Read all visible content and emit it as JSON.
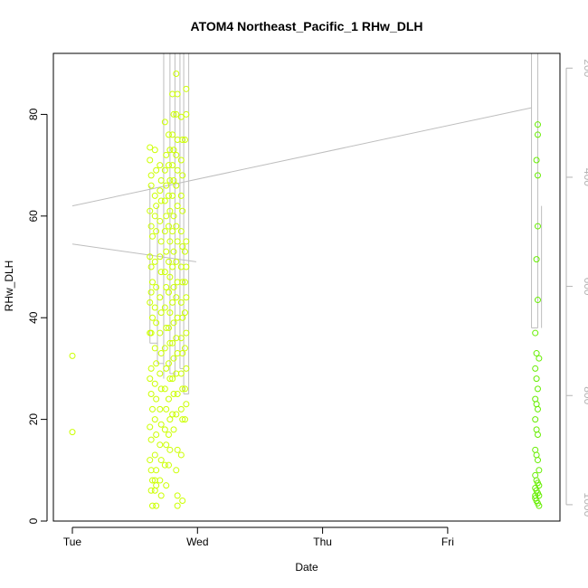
{
  "chart_data": {
    "type": "scatter",
    "title": "ATOM4 Northeast_Pacific_1 RHw_DLH",
    "xlabel": "Date",
    "ylabel": "RHw_DLH",
    "x_ticks": [
      "Tue",
      "Wed",
      "Thu",
      "Fri"
    ],
    "x_tick_positions_days": [
      0,
      1,
      2,
      3
    ],
    "xlim_days": [
      -0.2,
      3.9
    ],
    "ylim": [
      0,
      92
    ],
    "y_ticks": [
      0,
      20,
      40,
      60,
      80
    ],
    "right_axis": {
      "label": "",
      "ticks": [
        200,
        400,
        600,
        800,
        1000
      ],
      "range": [
        1030,
        173
      ],
      "color": "#b3b3b3"
    },
    "colors": {
      "early": "#ccff00",
      "late": "#66ee00",
      "line": "#bebebe"
    },
    "series": [
      {
        "points": [
          [
            0.0,
            32.5
          ],
          [
            0.0,
            17.5
          ],
          [
            0.62,
            73.5
          ],
          [
            0.62,
            71
          ],
          [
            0.63,
            68
          ],
          [
            0.63,
            66
          ],
          [
            0.62,
            61
          ],
          [
            0.63,
            58
          ],
          [
            0.64,
            56
          ],
          [
            0.62,
            52
          ],
          [
            0.63,
            50
          ],
          [
            0.64,
            47
          ],
          [
            0.63,
            45
          ],
          [
            0.62,
            43
          ],
          [
            0.64,
            40
          ],
          [
            0.63,
            37
          ],
          [
            0.62,
            37
          ],
          [
            0.63,
            30
          ],
          [
            0.62,
            28
          ],
          [
            0.63,
            25
          ],
          [
            0.64,
            22
          ],
          [
            0.62,
            18.5
          ],
          [
            0.63,
            16
          ],
          [
            0.62,
            12
          ],
          [
            0.63,
            10
          ],
          [
            0.64,
            8
          ],
          [
            0.63,
            6
          ],
          [
            0.64,
            3
          ],
          [
            0.66,
            73
          ],
          [
            0.67,
            69
          ],
          [
            0.66,
            64
          ],
          [
            0.67,
            62
          ],
          [
            0.66,
            60
          ],
          [
            0.67,
            57
          ],
          [
            0.66,
            51
          ],
          [
            0.67,
            46
          ],
          [
            0.66,
            42
          ],
          [
            0.67,
            39
          ],
          [
            0.66,
            34
          ],
          [
            0.67,
            31
          ],
          [
            0.66,
            27
          ],
          [
            0.67,
            24
          ],
          [
            0.66,
            20
          ],
          [
            0.67,
            17
          ],
          [
            0.66,
            13
          ],
          [
            0.67,
            10
          ],
          [
            0.66,
            8
          ],
          [
            0.67,
            7
          ],
          [
            0.66,
            6
          ],
          [
            0.67,
            3
          ],
          [
            0.7,
            70
          ],
          [
            0.71,
            67
          ],
          [
            0.7,
            65
          ],
          [
            0.71,
            63
          ],
          [
            0.7,
            59
          ],
          [
            0.71,
            55
          ],
          [
            0.7,
            52
          ],
          [
            0.71,
            49
          ],
          [
            0.7,
            44
          ],
          [
            0.71,
            41
          ],
          [
            0.7,
            37
          ],
          [
            0.71,
            33
          ],
          [
            0.7,
            29
          ],
          [
            0.71,
            26
          ],
          [
            0.7,
            22
          ],
          [
            0.71,
            19
          ],
          [
            0.7,
            15
          ],
          [
            0.71,
            12
          ],
          [
            0.7,
            8
          ],
          [
            0.71,
            5
          ],
          [
            0.74,
            78.5
          ],
          [
            0.75,
            72
          ],
          [
            0.74,
            69
          ],
          [
            0.75,
            66
          ],
          [
            0.74,
            63
          ],
          [
            0.75,
            60
          ],
          [
            0.74,
            57
          ],
          [
            0.75,
            53
          ],
          [
            0.74,
            49
          ],
          [
            0.75,
            46
          ],
          [
            0.74,
            42
          ],
          [
            0.75,
            38
          ],
          [
            0.74,
            34
          ],
          [
            0.75,
            30
          ],
          [
            0.74,
            26
          ],
          [
            0.75,
            22
          ],
          [
            0.74,
            18
          ],
          [
            0.75,
            15
          ],
          [
            0.74,
            11
          ],
          [
            0.75,
            7
          ],
          [
            0.77,
            76
          ],
          [
            0.78,
            73
          ],
          [
            0.77,
            70
          ],
          [
            0.78,
            67
          ],
          [
            0.77,
            64
          ],
          [
            0.78,
            61
          ],
          [
            0.77,
            58
          ],
          [
            0.78,
            55
          ],
          [
            0.77,
            51
          ],
          [
            0.78,
            48
          ],
          [
            0.77,
            45
          ],
          [
            0.78,
            41
          ],
          [
            0.77,
            38
          ],
          [
            0.78,
            35
          ],
          [
            0.77,
            31
          ],
          [
            0.78,
            28
          ],
          [
            0.77,
            24
          ],
          [
            0.78,
            20
          ],
          [
            0.77,
            17
          ],
          [
            0.78,
            14
          ],
          [
            0.77,
            11
          ],
          [
            0.8,
            84
          ],
          [
            0.81,
            80
          ],
          [
            0.8,
            76
          ],
          [
            0.81,
            73
          ],
          [
            0.8,
            70
          ],
          [
            0.81,
            67
          ],
          [
            0.8,
            64
          ],
          [
            0.81,
            60
          ],
          [
            0.8,
            57
          ],
          [
            0.81,
            53
          ],
          [
            0.8,
            50
          ],
          [
            0.81,
            46
          ],
          [
            0.8,
            43
          ],
          [
            0.81,
            39
          ],
          [
            0.8,
            35
          ],
          [
            0.81,
            32
          ],
          [
            0.8,
            28
          ],
          [
            0.81,
            25
          ],
          [
            0.8,
            21
          ],
          [
            0.81,
            18
          ],
          [
            0.83,
            88
          ],
          [
            0.84,
            84
          ],
          [
            0.83,
            80
          ],
          [
            0.84,
            75
          ],
          [
            0.83,
            72
          ],
          [
            0.84,
            69
          ],
          [
            0.83,
            66
          ],
          [
            0.84,
            62
          ],
          [
            0.83,
            58
          ],
          [
            0.84,
            55
          ],
          [
            0.83,
            51
          ],
          [
            0.84,
            47
          ],
          [
            0.83,
            44
          ],
          [
            0.84,
            40
          ],
          [
            0.83,
            36
          ],
          [
            0.84,
            33
          ],
          [
            0.83,
            29
          ],
          [
            0.84,
            25
          ],
          [
            0.83,
            21
          ],
          [
            0.84,
            14
          ],
          [
            0.83,
            10
          ],
          [
            0.84,
            5
          ],
          [
            0.84,
            3
          ],
          [
            0.87,
            79.5
          ],
          [
            0.88,
            75
          ],
          [
            0.87,
            71
          ],
          [
            0.88,
            68
          ],
          [
            0.87,
            64
          ],
          [
            0.88,
            61
          ],
          [
            0.87,
            57
          ],
          [
            0.88,
            54
          ],
          [
            0.87,
            50
          ],
          [
            0.88,
            47
          ],
          [
            0.87,
            43
          ],
          [
            0.88,
            40
          ],
          [
            0.87,
            36
          ],
          [
            0.88,
            33
          ],
          [
            0.87,
            29
          ],
          [
            0.88,
            26
          ],
          [
            0.87,
            22
          ],
          [
            0.88,
            20
          ],
          [
            0.87,
            13
          ],
          [
            0.88,
            4
          ],
          [
            0.91,
            85
          ],
          [
            0.91,
            80
          ],
          [
            0.9,
            75
          ],
          [
            0.91,
            55
          ],
          [
            0.9,
            53
          ],
          [
            0.91,
            50
          ],
          [
            0.9,
            47
          ],
          [
            0.91,
            44
          ],
          [
            0.9,
            41
          ],
          [
            0.91,
            37
          ],
          [
            0.9,
            34
          ],
          [
            0.91,
            30
          ],
          [
            0.9,
            26
          ],
          [
            0.91,
            23
          ],
          [
            0.9,
            20
          ]
        ]
      },
      {
        "points": [
          [
            3.72,
            78
          ],
          [
            3.72,
            76
          ],
          [
            3.71,
            71
          ],
          [
            3.72,
            68
          ],
          [
            3.72,
            58
          ],
          [
            3.71,
            51.5
          ],
          [
            3.72,
            43.5
          ],
          [
            3.7,
            37
          ],
          [
            3.71,
            33
          ],
          [
            3.73,
            32
          ],
          [
            3.7,
            30
          ],
          [
            3.71,
            28
          ],
          [
            3.72,
            26
          ],
          [
            3.7,
            24
          ],
          [
            3.71,
            23
          ],
          [
            3.72,
            22
          ],
          [
            3.7,
            20
          ],
          [
            3.71,
            18
          ],
          [
            3.72,
            17
          ],
          [
            3.7,
            14
          ],
          [
            3.71,
            13
          ],
          [
            3.72,
            12
          ],
          [
            3.73,
            10
          ],
          [
            3.7,
            9
          ],
          [
            3.71,
            8
          ],
          [
            3.72,
            7.5
          ],
          [
            3.73,
            7
          ],
          [
            3.7,
            6.5
          ],
          [
            3.71,
            6
          ],
          [
            3.72,
            5.5
          ],
          [
            3.73,
            5
          ],
          [
            3.7,
            4.5
          ],
          [
            3.71,
            4
          ],
          [
            3.72,
            3.5
          ],
          [
            3.73,
            3
          ],
          [
            3.7,
            5
          ]
        ]
      }
    ],
    "profile_lines": [
      {
        "label": "",
        "points": [
          [
            0.0,
            62
          ],
          [
            3.67,
            81.3
          ]
        ]
      },
      {
        "label": "",
        "points": [
          [
            0.0,
            54.5
          ],
          [
            0.99,
            51
          ]
        ]
      }
    ]
  }
}
